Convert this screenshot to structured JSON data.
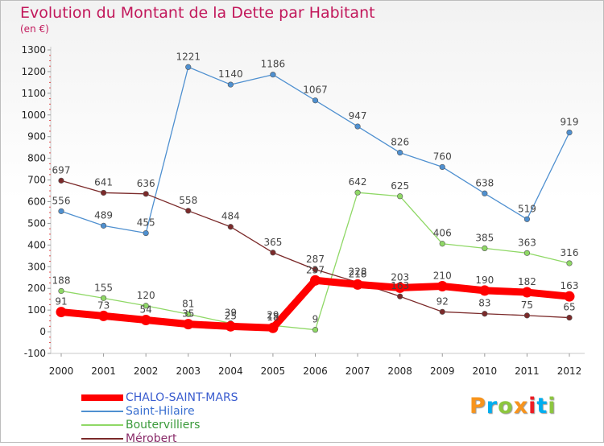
{
  "title": "Evolution du Montant de la Dette par Habitant",
  "unit": "(en €)",
  "brand": {
    "letters": [
      "P",
      "r",
      "o",
      "x",
      "i",
      "t",
      "i"
    ],
    "colors": [
      "#f7941d",
      "#00aeef",
      "#8dc63f",
      "#f7941d",
      "#ed1c24",
      "#00aeef",
      "#8dc63f"
    ]
  },
  "chart_data": {
    "type": "line",
    "x": [
      "2000",
      "2001",
      "2002",
      "2003",
      "2004",
      "2005",
      "2006",
      "2007",
      "2008",
      "2009",
      "2010",
      "2011",
      "2012"
    ],
    "yticks": [
      "-100",
      "0",
      "100",
      "200",
      "300",
      "400",
      "500",
      "600",
      "700",
      "800",
      "900",
      "1000",
      "1100",
      "1200",
      "1300"
    ],
    "ylim": [
      -100,
      1300
    ],
    "grid": false,
    "legend_position": "bottom-left",
    "series": [
      {
        "name": "CHALO-SAINT-MARS",
        "color": "#ff0000",
        "values": [
          91,
          73,
          54,
          35,
          25,
          18,
          237,
          218,
          203,
          210,
          190,
          182,
          163
        ],
        "labels": [
          "91",
          "73",
          "54",
          "35",
          "25",
          "18",
          "237",
          "218",
          "203",
          "210",
          "190",
          "182",
          "163"
        ]
      },
      {
        "name": "Saint-Hilaire",
        "color": "#4f90d0",
        "values": [
          556,
          489,
          455,
          1221,
          1140,
          1186,
          1067,
          947,
          826,
          760,
          638,
          519,
          919
        ],
        "labels": [
          "556",
          "489",
          "455",
          "1221",
          "1140",
          "1186",
          "1067",
          "947",
          "826",
          "760",
          "638",
          "519",
          "919"
        ]
      },
      {
        "name": "Boutervilliers",
        "color": "#8fd866",
        "values": [
          188,
          155,
          120,
          81,
          39,
          29,
          9,
          642,
          625,
          406,
          385,
          363,
          316
        ],
        "labels": [
          "188",
          "155",
          "120",
          "81",
          "39",
          "29",
          "9",
          "642",
          "625",
          "406",
          "385",
          "363",
          "316"
        ]
      },
      {
        "name": "Mérobert",
        "color": "#7b2a2a",
        "values": [
          697,
          641,
          636,
          558,
          484,
          365,
          287,
          228,
          163,
          92,
          83,
          75,
          65
        ],
        "labels": [
          "697",
          "641",
          "636",
          "558",
          "484",
          "365",
          "287",
          "228",
          "163",
          "92",
          "83",
          "75",
          "65"
        ]
      }
    ]
  }
}
